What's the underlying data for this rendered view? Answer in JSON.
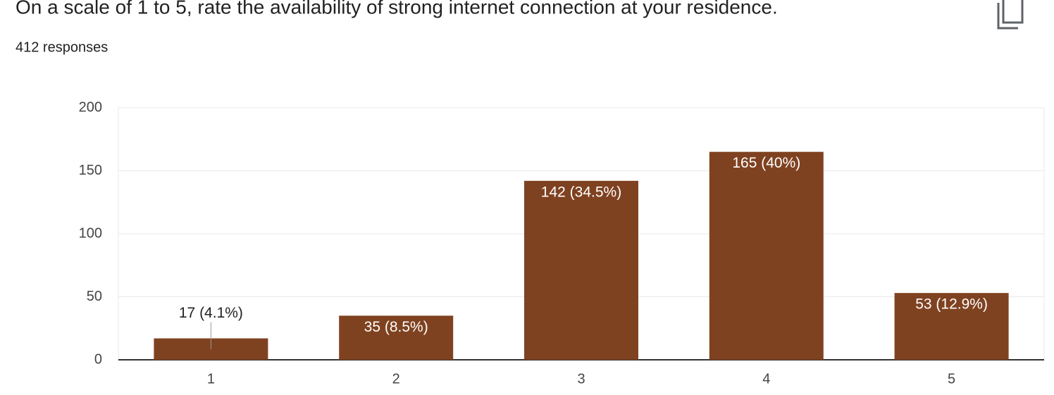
{
  "chart_data": {
    "type": "bar",
    "title": "On a scale of 1 to 5, rate the availability of strong internet connection at your residence.",
    "subtitle": "412 responses",
    "categories": [
      "1",
      "2",
      "3",
      "4",
      "5"
    ],
    "values": [
      17,
      35,
      142,
      165,
      53
    ],
    "value_labels": [
      "17 (4.1%)",
      "35 (8.5%)",
      "142 (34.5%)",
      "165 (40%)",
      "53 (12.9%)"
    ],
    "color": "#7f4220",
    "ylim": [
      0,
      200
    ],
    "yticks": [
      0,
      50,
      100,
      150,
      200
    ],
    "grid": true
  }
}
